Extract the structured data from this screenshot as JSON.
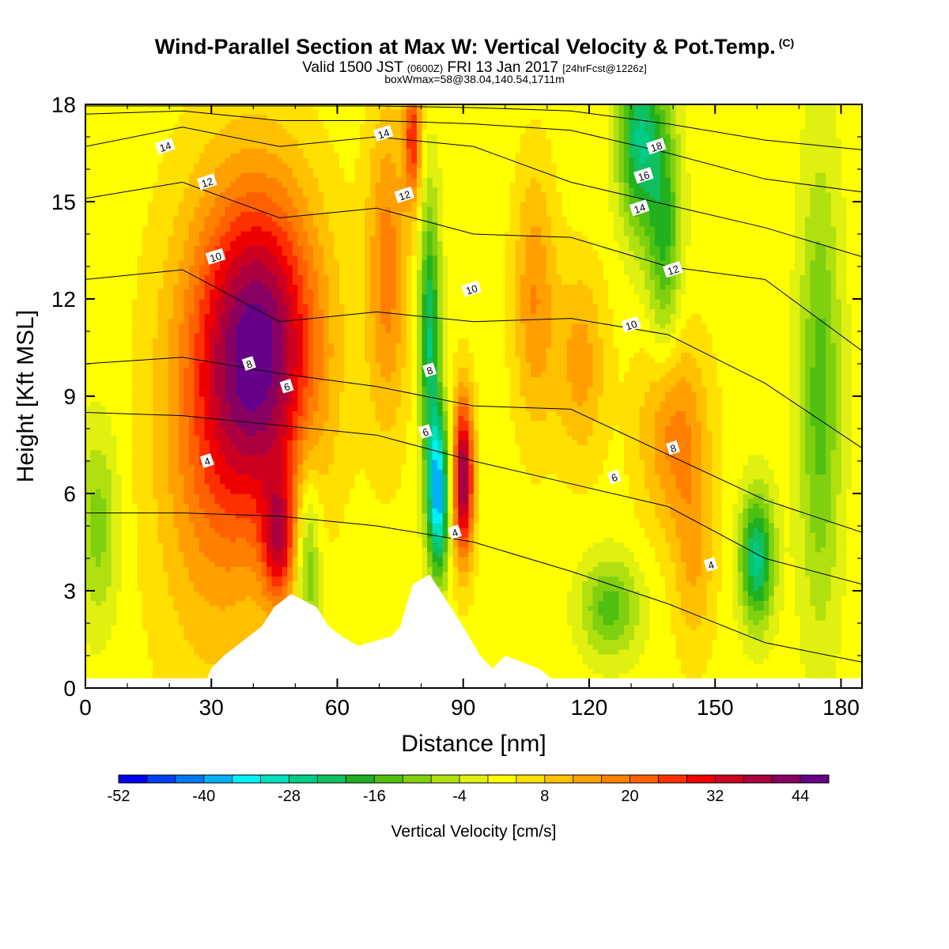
{
  "title": {
    "main": "Wind-Parallel Section at Max W: Vertical Velocity & Pot.Temp.",
    "copyright": "(C)",
    "valid_prefix": "Valid 1500 JST",
    "valid_utc": "(0600Z)",
    "valid_date": "FRI 13 Jan 2017",
    "forecast": "[24hrFcst@1226z]",
    "box_info": "boxWmax=58@38.04,140.54,1711m"
  },
  "colors": {
    "palette": [
      "#0000ee",
      "#0040f0",
      "#0078f0",
      "#00b0f8",
      "#00f0f8",
      "#00e0c0",
      "#00cc88",
      "#10c060",
      "#20b020",
      "#50c010",
      "#80d010",
      "#b0e010",
      "#e0f010",
      "#ffff00",
      "#ffe000",
      "#ffc000",
      "#ffa000",
      "#ff8000",
      "#ff6000",
      "#ff3000",
      "#ee0000",
      "#cc0020",
      "#aa0040",
      "#880060",
      "#660088"
    ],
    "contour": "#000000",
    "terrain": "#ffffff"
  },
  "chart_data": {
    "type": "heatmap",
    "xlabel": "Distance [nm]",
    "ylabel": "Height [Kft MSL]",
    "xlim": [
      0,
      185
    ],
    "ylim": [
      0,
      18
    ],
    "xticks": [
      0,
      30,
      60,
      90,
      120,
      150,
      180
    ],
    "yticks": [
      0,
      3,
      6,
      9,
      12,
      15,
      18
    ],
    "colorbar": {
      "label": "Vertical Velocity [cm/s]",
      "min": -52,
      "max": 48,
      "step": 4,
      "tick_labels": [
        -52,
        -40,
        -28,
        -16,
        -4,
        8,
        20,
        32,
        44
      ]
    },
    "velocity_features": [
      {
        "x": 42,
        "z": 10.5,
        "w": 40,
        "rx": 14,
        "rz": 5
      },
      {
        "x": 46,
        "z": 4.5,
        "w": 24,
        "rx": 4,
        "rz": 2
      },
      {
        "x": 30,
        "z": 7.5,
        "w": 14,
        "rx": 14,
        "rz": 7
      },
      {
        "x": 72,
        "z": 13,
        "w": 16,
        "rx": 5,
        "rz": 5
      },
      {
        "x": 53,
        "z": 4,
        "w": -16,
        "rx": 3,
        "rz": 3
      },
      {
        "x": 82,
        "z": 11,
        "w": -26,
        "rx": 2.5,
        "rz": 4
      },
      {
        "x": 84,
        "z": 6,
        "w": -40,
        "rx": 2.5,
        "rz": 2.5
      },
      {
        "x": 90,
        "z": 6.5,
        "w": 40,
        "rx": 2.5,
        "rz": 2.5
      },
      {
        "x": 78,
        "z": 17,
        "w": 24,
        "rx": 2,
        "rz": 2
      },
      {
        "x": 125,
        "z": 2.5,
        "w": -16,
        "rx": 7,
        "rz": 1.5
      },
      {
        "x": 160,
        "z": 4,
        "w": -28,
        "rx": 4,
        "rz": 2
      },
      {
        "x": 140,
        "z": 8,
        "w": 16,
        "rx": 8,
        "rz": 3
      },
      {
        "x": 145,
        "z": 4,
        "w": 10,
        "rx": 5,
        "rz": 3
      },
      {
        "x": 132,
        "z": 17,
        "w": -26,
        "rx": 5,
        "rz": 3
      },
      {
        "x": 138,
        "z": 14,
        "w": -18,
        "rx": 4,
        "rz": 4
      },
      {
        "x": 175,
        "z": 9,
        "w": -16,
        "rx": 5,
        "rz": 7
      },
      {
        "x": 3,
        "z": 5,
        "w": -12,
        "rx": 5,
        "rz": 3
      },
      {
        "x": 107,
        "z": 12,
        "w": 14,
        "rx": 5,
        "rz": 4
      },
      {
        "x": 118,
        "z": 10,
        "w": 12,
        "rx": 6,
        "rz": 3
      }
    ],
    "terrain_heights_kft": [
      {
        "x": 0,
        "z": 0.3
      },
      {
        "x": 29,
        "z": 0.3
      },
      {
        "x": 30,
        "z": 0.6
      },
      {
        "x": 33,
        "z": 1.0
      },
      {
        "x": 36,
        "z": 1.3
      },
      {
        "x": 39,
        "z": 1.6
      },
      {
        "x": 42,
        "z": 1.9
      },
      {
        "x": 45,
        "z": 2.5
      },
      {
        "x": 49,
        "z": 2.9
      },
      {
        "x": 55,
        "z": 2.5
      },
      {
        "x": 58,
        "z": 1.9
      },
      {
        "x": 61,
        "z": 1.6
      },
      {
        "x": 65,
        "z": 1.3
      },
      {
        "x": 73,
        "z": 1.6
      },
      {
        "x": 75,
        "z": 1.9
      },
      {
        "x": 78,
        "z": 3.2
      },
      {
        "x": 82,
        "z": 3.5
      },
      {
        "x": 87,
        "z": 2.5
      },
      {
        "x": 90,
        "z": 1.9
      },
      {
        "x": 94,
        "z": 1.0
      },
      {
        "x": 97,
        "z": 0.6
      },
      {
        "x": 100,
        "z": 1.0
      },
      {
        "x": 108,
        "z": 0.6
      },
      {
        "x": 111,
        "z": 0.3
      },
      {
        "x": 185,
        "z": 0.3
      }
    ],
    "theta_contours": [
      {
        "label": "4",
        "z": [
          5.4,
          5.4,
          5.3,
          5.0,
          4.5,
          3.6,
          2.6,
          1.4,
          0.8
        ]
      },
      {
        "label": "6",
        "z": [
          8.5,
          8.4,
          8.1,
          7.8,
          7.0,
          6.3,
          5.6,
          4.0,
          3.2
        ]
      },
      {
        "label": "8",
        "z": [
          10.0,
          10.2,
          9.7,
          9.3,
          8.7,
          8.6,
          7.2,
          5.8,
          4.8
        ]
      },
      {
        "label": "10",
        "z": [
          12.6,
          12.9,
          11.3,
          11.6,
          11.3,
          11.4,
          10.9,
          9.4,
          7.4
        ]
      },
      {
        "label": "12",
        "z": [
          15.1,
          15.6,
          14.5,
          14.8,
          14.0,
          13.9,
          13.0,
          12.6,
          10.4
        ]
      },
      {
        "label": "14",
        "z": [
          16.7,
          17.3,
          16.7,
          17.0,
          16.7,
          15.6,
          14.9,
          14.2,
          13.3
        ]
      },
      {
        "label": "16",
        "z": [
          17.7,
          17.8,
          17.5,
          17.5,
          17.4,
          17.2,
          16.5,
          15.7,
          15.3
        ]
      },
      {
        "label": "18",
        "z": [
          17.95,
          17.95,
          17.95,
          17.95,
          17.9,
          17.8,
          17.4,
          16.9,
          16.6
        ]
      }
    ],
    "contour_label_positions": [
      {
        "label": "14",
        "x": 19,
        "z": 16.7
      },
      {
        "label": "12",
        "x": 29,
        "z": 15.6
      },
      {
        "label": "10",
        "x": 31,
        "z": 13.3
      },
      {
        "label": "8",
        "x": 39,
        "z": 10.0
      },
      {
        "label": "6",
        "x": 48,
        "z": 9.3
      },
      {
        "label": "4",
        "x": 29,
        "z": 7.0
      },
      {
        "label": "14",
        "x": 71,
        "z": 17.1
      },
      {
        "label": "12",
        "x": 76,
        "z": 15.2
      },
      {
        "label": "10",
        "x": 92,
        "z": 12.3
      },
      {
        "label": "8",
        "x": 82,
        "z": 9.8
      },
      {
        "label": "6",
        "x": 81,
        "z": 7.9
      },
      {
        "label": "4",
        "x": 88,
        "z": 4.8
      },
      {
        "label": "18",
        "x": 136,
        "z": 16.7
      },
      {
        "label": "16",
        "x": 133,
        "z": 15.8
      },
      {
        "label": "14",
        "x": 132,
        "z": 14.8
      },
      {
        "label": "12",
        "x": 140,
        "z": 12.9
      },
      {
        "label": "10",
        "x": 130,
        "z": 11.2
      },
      {
        "label": "8",
        "x": 140,
        "z": 7.4
      },
      {
        "label": "6",
        "x": 126,
        "z": 6.5
      },
      {
        "label": "4",
        "x": 149,
        "z": 3.8
      }
    ]
  }
}
